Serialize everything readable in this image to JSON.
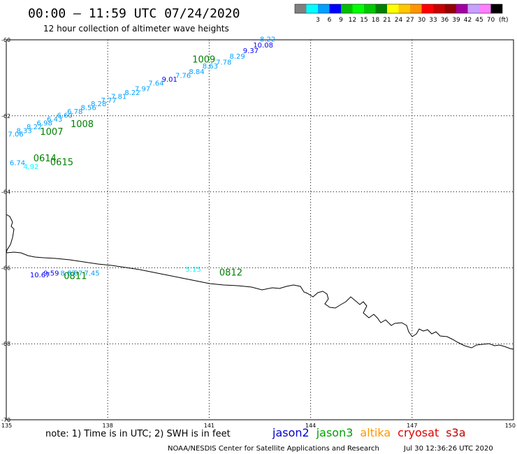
{
  "header": {
    "title": "00:00 – 11:59 UTC 07/24/2020",
    "subtitle": "12 hour collection of altimeter wave heights"
  },
  "legend_scale": {
    "unit": "(ft)",
    "swatches": [
      {
        "color": "#808080",
        "label": ""
      },
      {
        "color": "#00ffff",
        "label": "3"
      },
      {
        "color": "#00a0ff",
        "label": "6"
      },
      {
        "color": "#0000ff",
        "label": "9"
      },
      {
        "color": "#00c000",
        "label": "12"
      },
      {
        "color": "#00ff00",
        "label": "15"
      },
      {
        "color": "#00c800",
        "label": "18"
      },
      {
        "color": "#008000",
        "label": "21"
      },
      {
        "color": "#ffff00",
        "label": "24"
      },
      {
        "color": "#ffc800",
        "label": "27"
      },
      {
        "color": "#ff9600",
        "label": "30"
      },
      {
        "color": "#ff0000",
        "label": "33"
      },
      {
        "color": "#c80000",
        "label": "36"
      },
      {
        "color": "#960000",
        "label": "39"
      },
      {
        "color": "#a000a0",
        "label": "42"
      },
      {
        "color": "#c8a0ff",
        "label": "45"
      },
      {
        "color": "#ff80ff",
        "label": "70"
      },
      {
        "color": "#000000",
        "label": ""
      }
    ]
  },
  "map": {
    "lat_labels": [
      "-60",
      "-62",
      "-64",
      "-66",
      "-68",
      "-70"
    ],
    "lon_labels": [
      "135",
      "138",
      "141",
      "144",
      "147",
      "150"
    ],
    "time_labels": [
      {
        "text": "1009",
        "lon": 140.5,
        "lat": -60.6
      },
      {
        "text": "1008",
        "lon": 136.9,
        "lat": -62.3
      },
      {
        "text": "1007",
        "lon": 136.0,
        "lat": -62.5
      },
      {
        "text": "0614",
        "lon": 135.8,
        "lat": -63.2
      },
      {
        "text": "0615",
        "lon": 136.3,
        "lat": -63.3
      },
      {
        "text": "0811",
        "lon": 136.7,
        "lat": -66.3
      },
      {
        "text": "0812",
        "lon": 141.3,
        "lat": -66.2
      }
    ],
    "wave_heights": [
      {
        "text": "8.22",
        "lon": 142.5,
        "lat": -60.05,
        "color": "#00a0ff"
      },
      {
        "text": "10.08",
        "lon": 142.3,
        "lat": -60.2,
        "color": "#0000ff"
      },
      {
        "text": "9.37",
        "lon": 142.0,
        "lat": -60.35,
        "color": "#0000ff"
      },
      {
        "text": "8.29",
        "lon": 141.6,
        "lat": -60.5,
        "color": "#00a0ff"
      },
      {
        "text": "7.78",
        "lon": 141.2,
        "lat": -60.65,
        "color": "#00a0ff"
      },
      {
        "text": "8.63",
        "lon": 140.8,
        "lat": -60.75,
        "color": "#00a0ff"
      },
      {
        "text": "8.84",
        "lon": 140.4,
        "lat": -60.9,
        "color": "#00a0ff"
      },
      {
        "text": "7.76",
        "lon": 140.0,
        "lat": -61.0,
        "color": "#00a0ff"
      },
      {
        "text": "9.01",
        "lon": 139.6,
        "lat": -61.1,
        "color": "#0000ff"
      },
      {
        "text": "7.64",
        "lon": 139.2,
        "lat": -61.2,
        "color": "#00a0ff"
      },
      {
        "text": "7.97",
        "lon": 138.8,
        "lat": -61.35,
        "color": "#00a0ff"
      },
      {
        "text": "8.22",
        "lon": 138.5,
        "lat": -61.45,
        "color": "#00a0ff"
      },
      {
        "text": "7.81",
        "lon": 138.1,
        "lat": -61.55,
        "color": "#00a0ff"
      },
      {
        "text": "7.77",
        "lon": 137.8,
        "lat": -61.65,
        "color": "#00a0ff"
      },
      {
        "text": "8.28",
        "lon": 137.5,
        "lat": -61.75,
        "color": "#00a0ff"
      },
      {
        "text": "8.56",
        "lon": 137.2,
        "lat": -61.85,
        "color": "#00a0ff"
      },
      {
        "text": "6.78",
        "lon": 136.8,
        "lat": -61.95,
        "color": "#00a0ff"
      },
      {
        "text": "6.60",
        "lon": 136.5,
        "lat": -62.05,
        "color": "#00a0ff"
      },
      {
        "text": "6.43",
        "lon": 136.2,
        "lat": -62.15,
        "color": "#00a0ff"
      },
      {
        "text": "6.98",
        "lon": 135.9,
        "lat": -62.25,
        "color": "#00a0ff"
      },
      {
        "text": "8.22",
        "lon": 135.6,
        "lat": -62.35,
        "color": "#00a0ff"
      },
      {
        "text": "8.33",
        "lon": 135.3,
        "lat": -62.45,
        "color": "#00a0ff"
      },
      {
        "text": "7.06",
        "lon": 135.05,
        "lat": -62.55,
        "color": "#00a0ff"
      },
      {
        "text": "6.74",
        "lon": 135.1,
        "lat": -63.3,
        "color": "#00a0ff"
      },
      {
        "text": "4.92",
        "lon": 135.5,
        "lat": -63.4,
        "color": "#00ffff"
      },
      {
        "text": "10.67",
        "lon": 135.7,
        "lat": -66.25,
        "color": "#0000ff"
      },
      {
        "text": "9.59",
        "lon": 136.1,
        "lat": -66.2,
        "color": "#0000ff"
      },
      {
        "text": "8.67",
        "lon": 136.6,
        "lat": -66.2,
        "color": "#00a0ff"
      },
      {
        "text": "8.87",
        "lon": 136.8,
        "lat": -66.2,
        "color": "#00a0ff"
      },
      {
        "text": "7.45",
        "lon": 137.3,
        "lat": -66.2,
        "color": "#00a0ff"
      },
      {
        "text": "5.15",
        "lon": 140.3,
        "lat": -66.1,
        "color": "#00ffff"
      }
    ]
  },
  "footer": {
    "note": "note: 1) Time is in UTC; 2) SWH is in feet",
    "satellites": [
      {
        "name": "jason2",
        "color": "#0000c8"
      },
      {
        "name": "jason3",
        "color": "#00a000"
      },
      {
        "name": "altika",
        "color": "#ff9600"
      },
      {
        "name": "cryosat",
        "color": "#e00000"
      },
      {
        "name": "s3a",
        "color": "#c00000"
      }
    ],
    "credit": "NOAA/NESDIS Center for Satellite Applications and Research",
    "timestamp": "Jul 30 12:36:26 UTC 2020"
  }
}
